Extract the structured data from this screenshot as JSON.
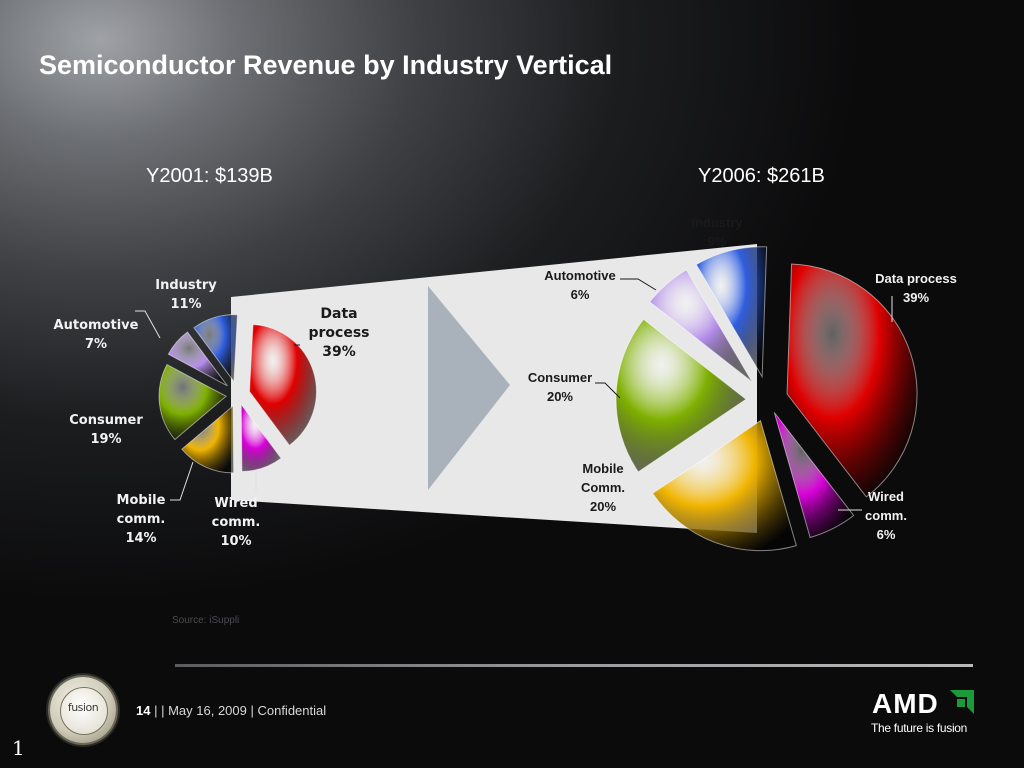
{
  "slide": {
    "title": "Semiconductor Revenue by Industry Vertical",
    "source": "Source: iSuppli",
    "page_number": "14",
    "footer_sep": "| |",
    "footer_date": "May 16, 2009 | Confidential",
    "fusion_logo_text": "fusion",
    "amd_logo_text": "AMD",
    "amd_tagline": "The future is fusion",
    "corner_number": "1"
  },
  "colors": {
    "data_process": "#e00000",
    "wired_comm": "#d800d8",
    "mobile_comm": "#f0b400",
    "consumer": "#7fb000",
    "automotive": "#b28ce8",
    "industry": "#2f5ee0",
    "callout_panel": "#e8e8e8",
    "arrow": "#a9b2bb"
  },
  "chart_data": [
    {
      "type": "pie",
      "title": "Y2001: $139B",
      "categories": [
        "Data process",
        "Wired comm.",
        "Mobile comm.",
        "Consumer",
        "Automotive",
        "Industry"
      ],
      "values": [
        39,
        10,
        14,
        19,
        7,
        11
      ],
      "value_labels": [
        "39%",
        "10%",
        "14%",
        "19%",
        "7%",
        "11%"
      ],
      "exploded": true
    },
    {
      "type": "pie",
      "title": "Y2006: $261B",
      "categories": [
        "Data process",
        "Wired comm.",
        "Mobile Comm.",
        "Consumer",
        "Automotive",
        "Industry"
      ],
      "values": [
        39,
        6,
        20,
        20,
        6,
        9
      ],
      "value_labels": [
        "39%",
        "6%",
        "20%",
        "20%",
        "6%",
        "9%"
      ],
      "exploded": true
    }
  ]
}
